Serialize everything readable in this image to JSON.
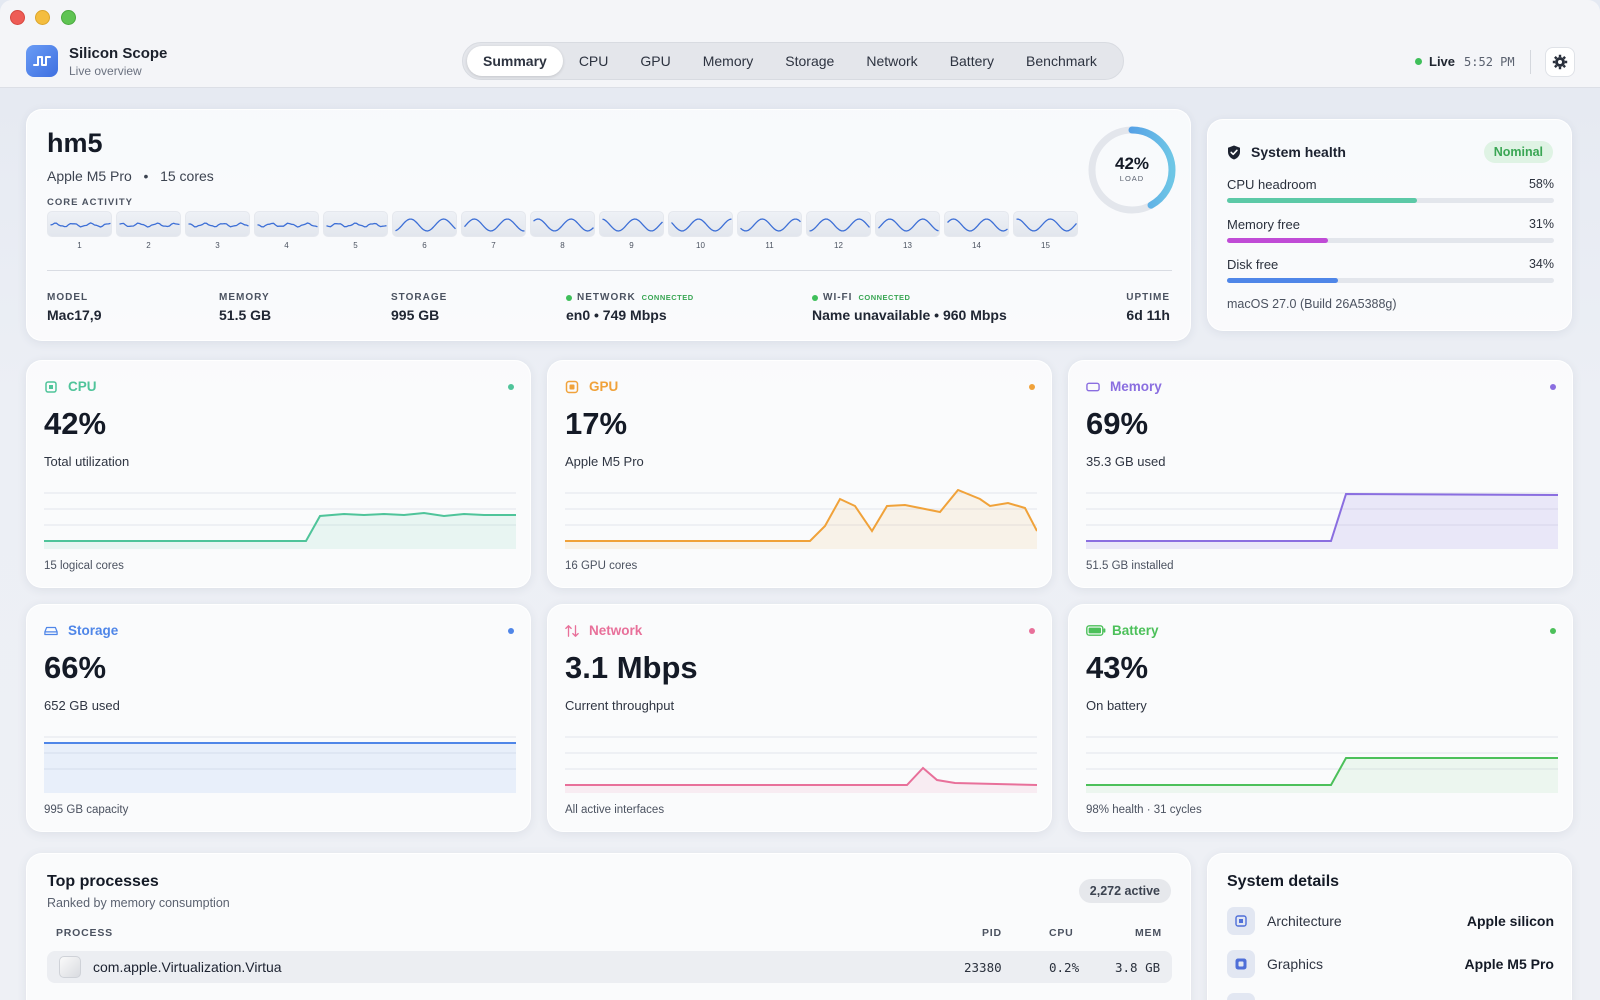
{
  "app": {
    "title": "Silicon Scope",
    "subtitle": "Live overview"
  },
  "tabs": [
    {
      "label": "Summary",
      "active": true
    },
    {
      "label": "CPU"
    },
    {
      "label": "GPU"
    },
    {
      "label": "Memory"
    },
    {
      "label": "Storage"
    },
    {
      "label": "Network"
    },
    {
      "label": "Battery"
    },
    {
      "label": "Benchmark"
    }
  ],
  "status": {
    "live_label": "Live",
    "time": "5:52 PM"
  },
  "hero": {
    "hostname": "hm5",
    "chip": "Apple M5 Pro",
    "cores_text": "15 cores",
    "core_activity_label": "CORE ACTIVITY",
    "core_numbers": [
      "1",
      "2",
      "3",
      "4",
      "5",
      "6",
      "7",
      "8",
      "9",
      "10",
      "11",
      "12",
      "13",
      "14",
      "15"
    ],
    "load_percent": 42,
    "load_value": "42%",
    "load_label": "LOAD",
    "stats": {
      "model": {
        "label": "MODEL",
        "value": "Mac17,9"
      },
      "memory": {
        "label": "MEMORY",
        "value": "51.5 GB"
      },
      "storage": {
        "label": "STORAGE",
        "value": "995 GB"
      },
      "network": {
        "label": "NETWORK",
        "status": "CONNECTED",
        "value": "en0 • 749 Mbps"
      },
      "wifi": {
        "label": "WI-FI",
        "status": "CONNECTED",
        "value": "Name unavailable • 960 Mbps"
      },
      "uptime": {
        "label": "UPTIME",
        "value": "6d 11h"
      }
    }
  },
  "health": {
    "title": "System health",
    "badge": "Nominal",
    "rows": [
      {
        "label": "CPU headroom",
        "pct": "58%",
        "fraction": 0.58,
        "color": "#5cc9a7"
      },
      {
        "label": "Memory free",
        "pct": "31%",
        "fraction": 0.31,
        "color": "#c04bd6"
      },
      {
        "label": "Disk free",
        "pct": "34%",
        "fraction": 0.34,
        "color": "#4f86e8"
      }
    ],
    "os": "macOS 27.0 (Build 26A5388g)"
  },
  "metrics": {
    "cpu": {
      "title": "CPU",
      "value": "42%",
      "sub": "Total utilization",
      "foot": "15 logical cores",
      "color": "#4fc49a",
      "icon": "cpu-icon"
    },
    "gpu": {
      "title": "GPU",
      "value": "17%",
      "sub": "Apple M5 Pro",
      "foot": "16 GPU cores",
      "color": "#f0a23a",
      "icon": "gpu-icon"
    },
    "memory": {
      "title": "Memory",
      "value": "69%",
      "sub": "35.3 GB used",
      "foot": "51.5 GB installed",
      "color": "#8a6ee0",
      "icon": "memory-icon"
    },
    "storage": {
      "title": "Storage",
      "value": "66%",
      "sub": "652 GB used",
      "foot": "995 GB capacity",
      "color": "#4f86e8",
      "icon": "storage-icon"
    },
    "network": {
      "title": "Network",
      "value": "3.1 Mbps",
      "sub": "Current throughput",
      "foot": "All active interfaces",
      "color": "#e8709a",
      "icon": "network-arrows-icon"
    },
    "battery": {
      "title": "Battery",
      "value": "43%",
      "sub": "On battery",
      "foot": "98% health · 31 cycles",
      "color": "#4cc05a",
      "icon": "battery-icon"
    }
  },
  "processes": {
    "title": "Top processes",
    "subtitle": "Ranked by memory consumption",
    "badge": "2,272 active",
    "columns": {
      "process": "PROCESS",
      "pid": "PID",
      "cpu": "CPU",
      "mem": "MEM"
    },
    "rows": [
      {
        "name": "com.apple.Virtualization.Virtua",
        "pid": "23380",
        "cpu": "0.2%",
        "mem": "3.8 GB"
      }
    ]
  },
  "details": {
    "title": "System details",
    "rows": [
      {
        "key": "Architecture",
        "value": "Apple silicon",
        "icon": "chip-icon"
      },
      {
        "key": "Graphics",
        "value": "Apple M5 Pro",
        "icon": "graphics-chip-icon"
      }
    ]
  }
}
